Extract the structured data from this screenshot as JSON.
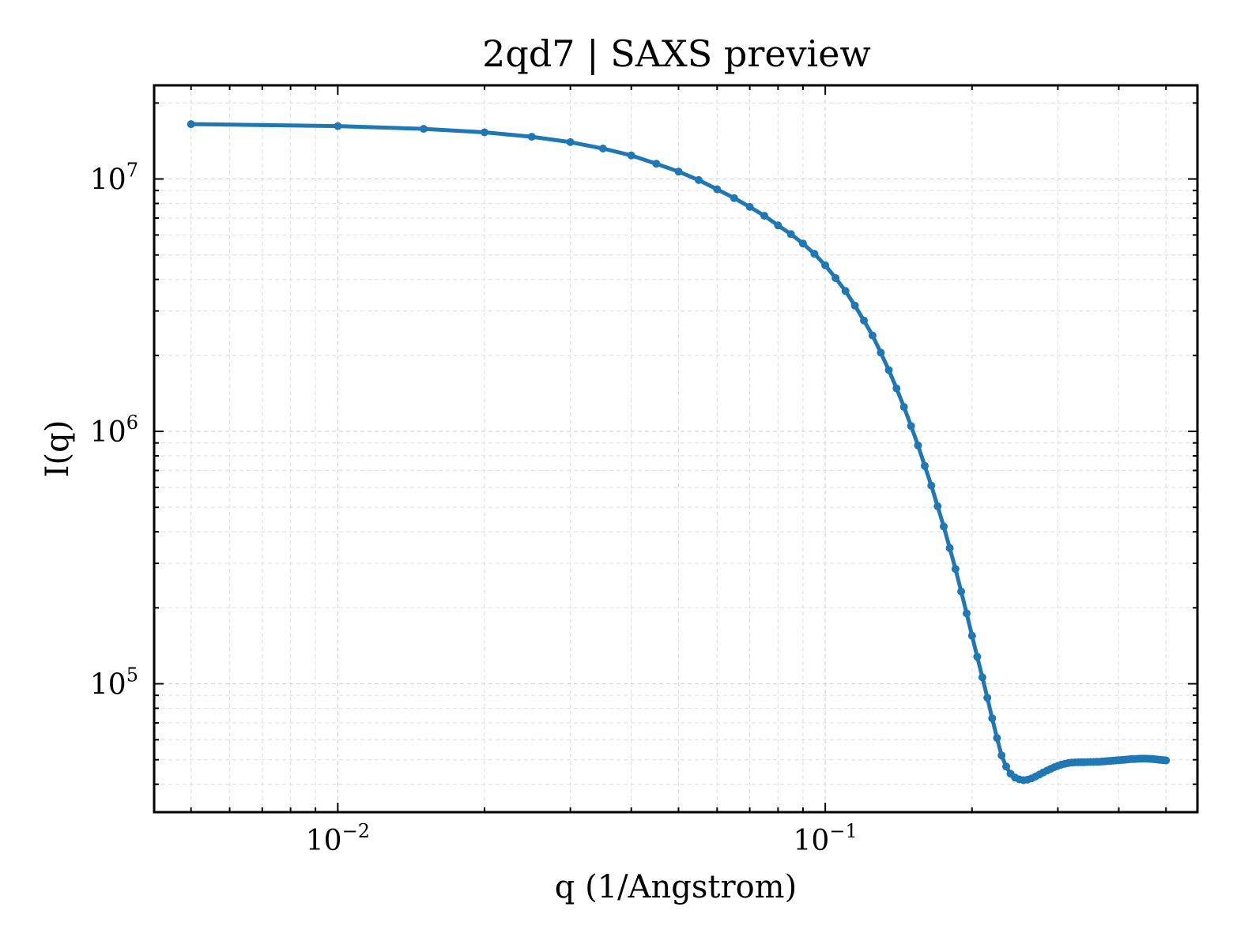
{
  "chart_data": {
    "type": "line",
    "title": "2qd7 | SAXS preview",
    "xlabel": "q (1/Angstrom)",
    "ylabel": "I(q)",
    "x_scale": "log",
    "y_scale": "log",
    "xlim": [
      0.0042,
      0.58
    ],
    "ylim": [
      31000,
      23500000
    ],
    "grid": true,
    "x_ticks": [
      {
        "value": 0.01,
        "base": "10",
        "exp": "−2"
      },
      {
        "value": 0.1,
        "base": "10",
        "exp": "−1"
      }
    ],
    "y_ticks": [
      {
        "value": 100000,
        "base": "10",
        "exp": "5"
      },
      {
        "value": 1000000,
        "base": "10",
        "exp": "6"
      },
      {
        "value": 10000000,
        "base": "10",
        "exp": "7"
      }
    ],
    "series": [
      {
        "color": "#1f77b4",
        "x": [
          0.005,
          0.01,
          0.015,
          0.02,
          0.025,
          0.03,
          0.035,
          0.04,
          0.045,
          0.05,
          0.055,
          0.06,
          0.065,
          0.07,
          0.075,
          0.08,
          0.085,
          0.09,
          0.095,
          0.1,
          0.105,
          0.11,
          0.115,
          0.12,
          0.125,
          0.13,
          0.135,
          0.14,
          0.145,
          0.15,
          0.155,
          0.16,
          0.165,
          0.17,
          0.175,
          0.18,
          0.185,
          0.19,
          0.195,
          0.2,
          0.205,
          0.21,
          0.215,
          0.22,
          0.225,
          0.23,
          0.235,
          0.24,
          0.245,
          0.25,
          0.255,
          0.26,
          0.265,
          0.27,
          0.275,
          0.28,
          0.285,
          0.29,
          0.295,
          0.3,
          0.305,
          0.31,
          0.315,
          0.32,
          0.325,
          0.33,
          0.335,
          0.34,
          0.345,
          0.35,
          0.355,
          0.36,
          0.365,
          0.37,
          0.375,
          0.38,
          0.385,
          0.39,
          0.395,
          0.4,
          0.405,
          0.41,
          0.415,
          0.42,
          0.425,
          0.43,
          0.435,
          0.44,
          0.445,
          0.45,
          0.455,
          0.46,
          0.465,
          0.47,
          0.475,
          0.48,
          0.485,
          0.49,
          0.495,
          0.5
        ],
        "y": [
          16500000,
          16200000,
          15800000,
          15300000,
          14700000,
          14000000,
          13200000,
          12400000,
          11500000,
          10700000,
          9900000,
          9100000,
          8400000,
          7750000,
          7150000,
          6550000,
          6050000,
          5550000,
          5050000,
          4550000,
          4050000,
          3600000,
          3150000,
          2750000,
          2400000,
          2050000,
          1750000,
          1480000,
          1250000,
          1050000,
          880000,
          730000,
          610000,
          505000,
          420000,
          345000,
          285000,
          232000,
          190000,
          155000,
          128000,
          106000,
          88000,
          73000,
          61000,
          52000,
          47000,
          44000,
          42500,
          41800,
          41500,
          41700,
          42200,
          42900,
          43700,
          44500,
          45300,
          46000,
          46700,
          47300,
          47800,
          48200,
          48500,
          48700,
          48800,
          48850,
          48900,
          48920,
          48950,
          48980,
          49000,
          49050,
          49100,
          49200,
          49300,
          49400,
          49500,
          49600,
          49700,
          49800,
          49900,
          50000,
          50100,
          50200,
          50300,
          50350,
          50400,
          50450,
          50500,
          50500,
          50500,
          50450,
          50400,
          50300,
          50200,
          50100,
          50000,
          49900,
          49800,
          49700
        ]
      }
    ]
  }
}
